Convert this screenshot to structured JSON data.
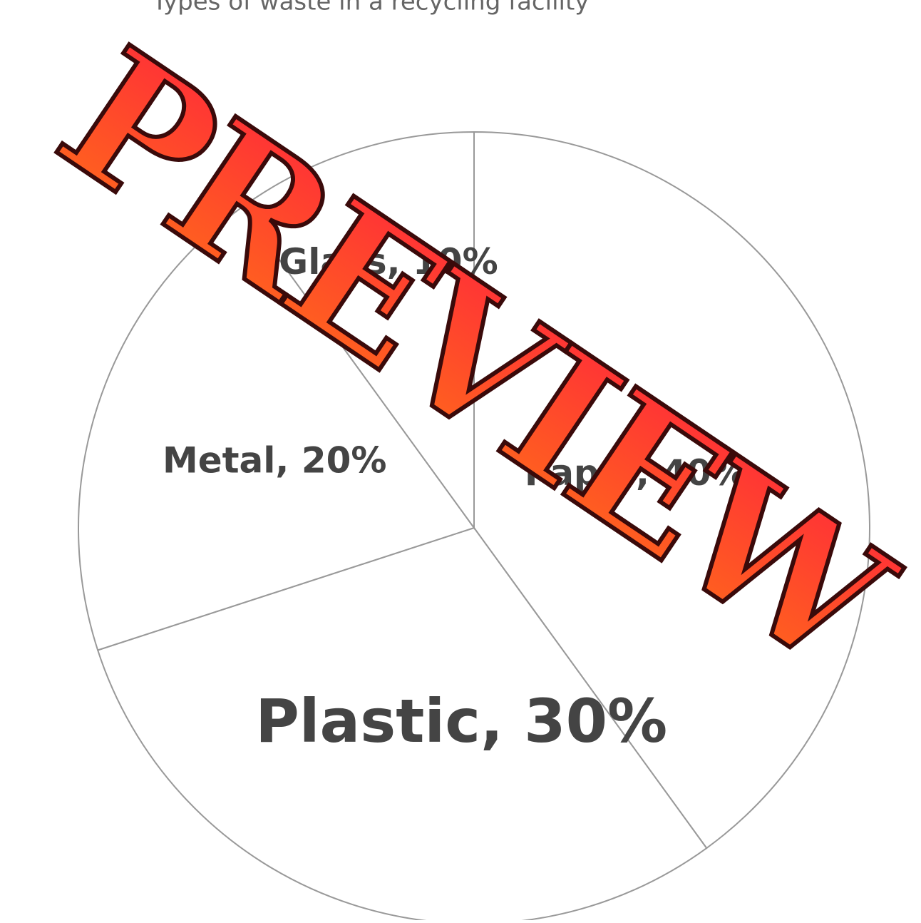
{
  "chart_data": {
    "type": "pie",
    "title": "Types of waste in a recycling facility",
    "values": [
      40,
      30,
      20,
      10
    ],
    "value_labels": [
      "Paper, 40%",
      "Plastic, 30%",
      "Metal, 20%",
      "Glass, 10%"
    ],
    "color": "#ffffff",
    "edge_color": "#999999",
    "watermark": "PREVIEW"
  }
}
